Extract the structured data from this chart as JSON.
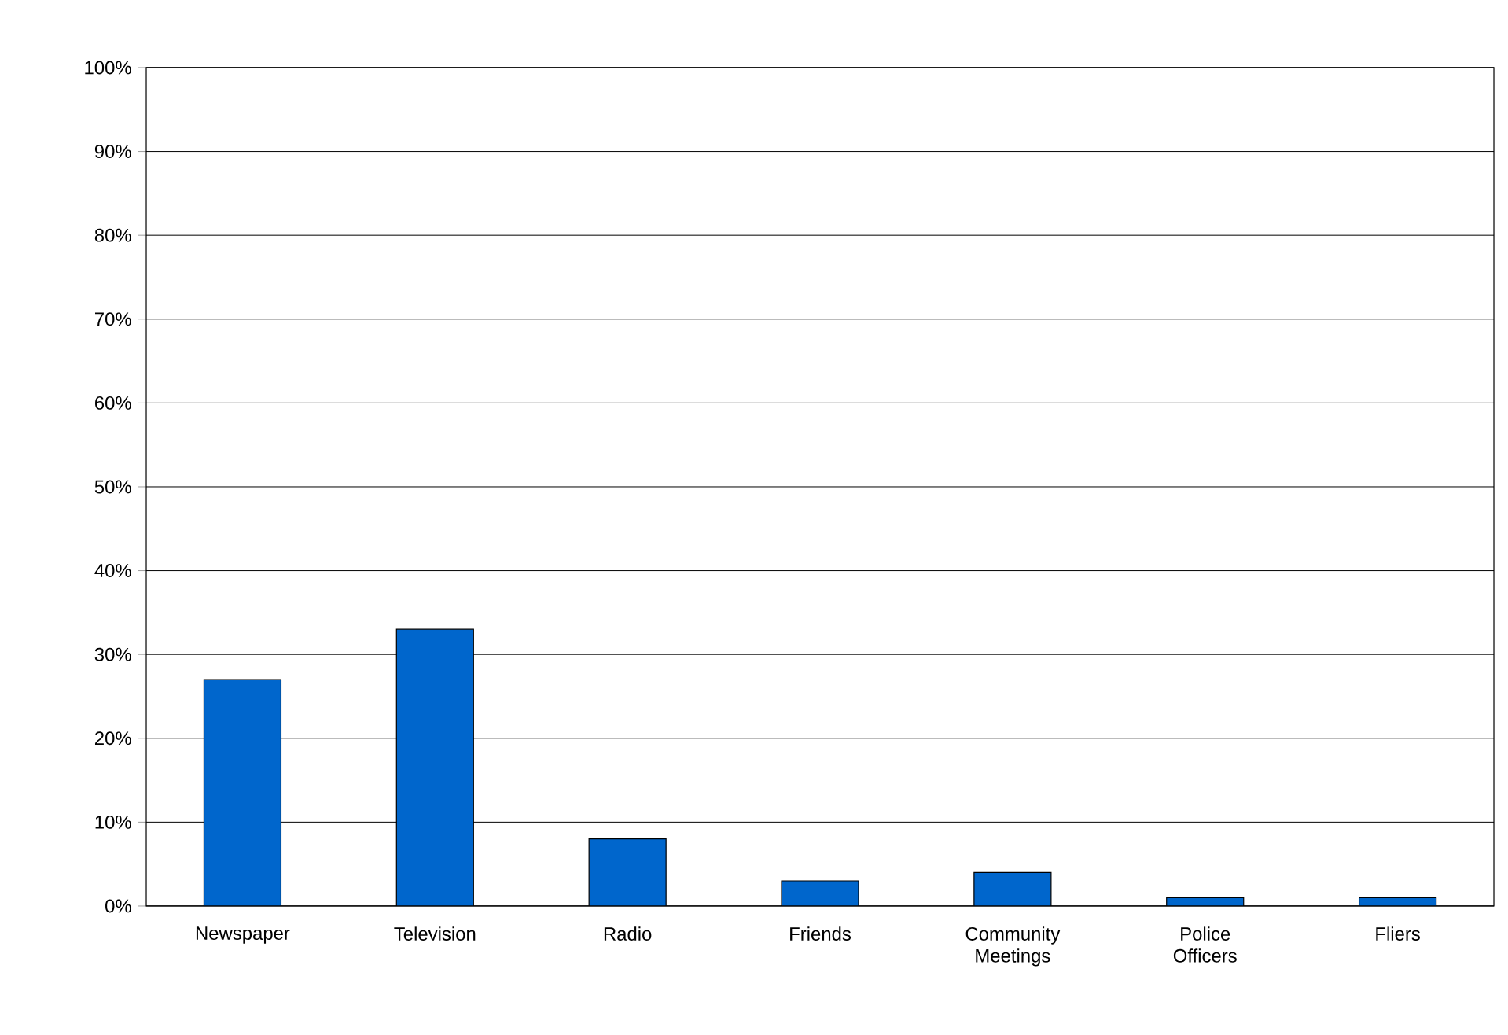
{
  "chart_data": {
    "type": "bar",
    "categories": [
      "Newspaper",
      "Television",
      "Radio",
      "Friends",
      "Community Meetings",
      "Police Officers",
      "Fliers"
    ],
    "values": [
      27,
      33,
      8,
      3,
      4,
      1,
      1
    ],
    "color": "#0066cc",
    "ylim": [
      0,
      100
    ],
    "yticks": [
      {
        "value": 0,
        "label": "0%"
      },
      {
        "value": 10,
        "label": "10%"
      },
      {
        "value": 20,
        "label": "20%"
      },
      {
        "value": 30,
        "label": "30%"
      },
      {
        "value": 40,
        "label": "40%"
      },
      {
        "value": 50,
        "label": "50%"
      },
      {
        "value": 60,
        "label": "60%"
      },
      {
        "value": 70,
        "label": "70%"
      },
      {
        "value": 80,
        "label": "80%"
      },
      {
        "value": 90,
        "label": "90%"
      },
      {
        "value": 100,
        "label": "100%"
      }
    ],
    "grid": "y"
  }
}
